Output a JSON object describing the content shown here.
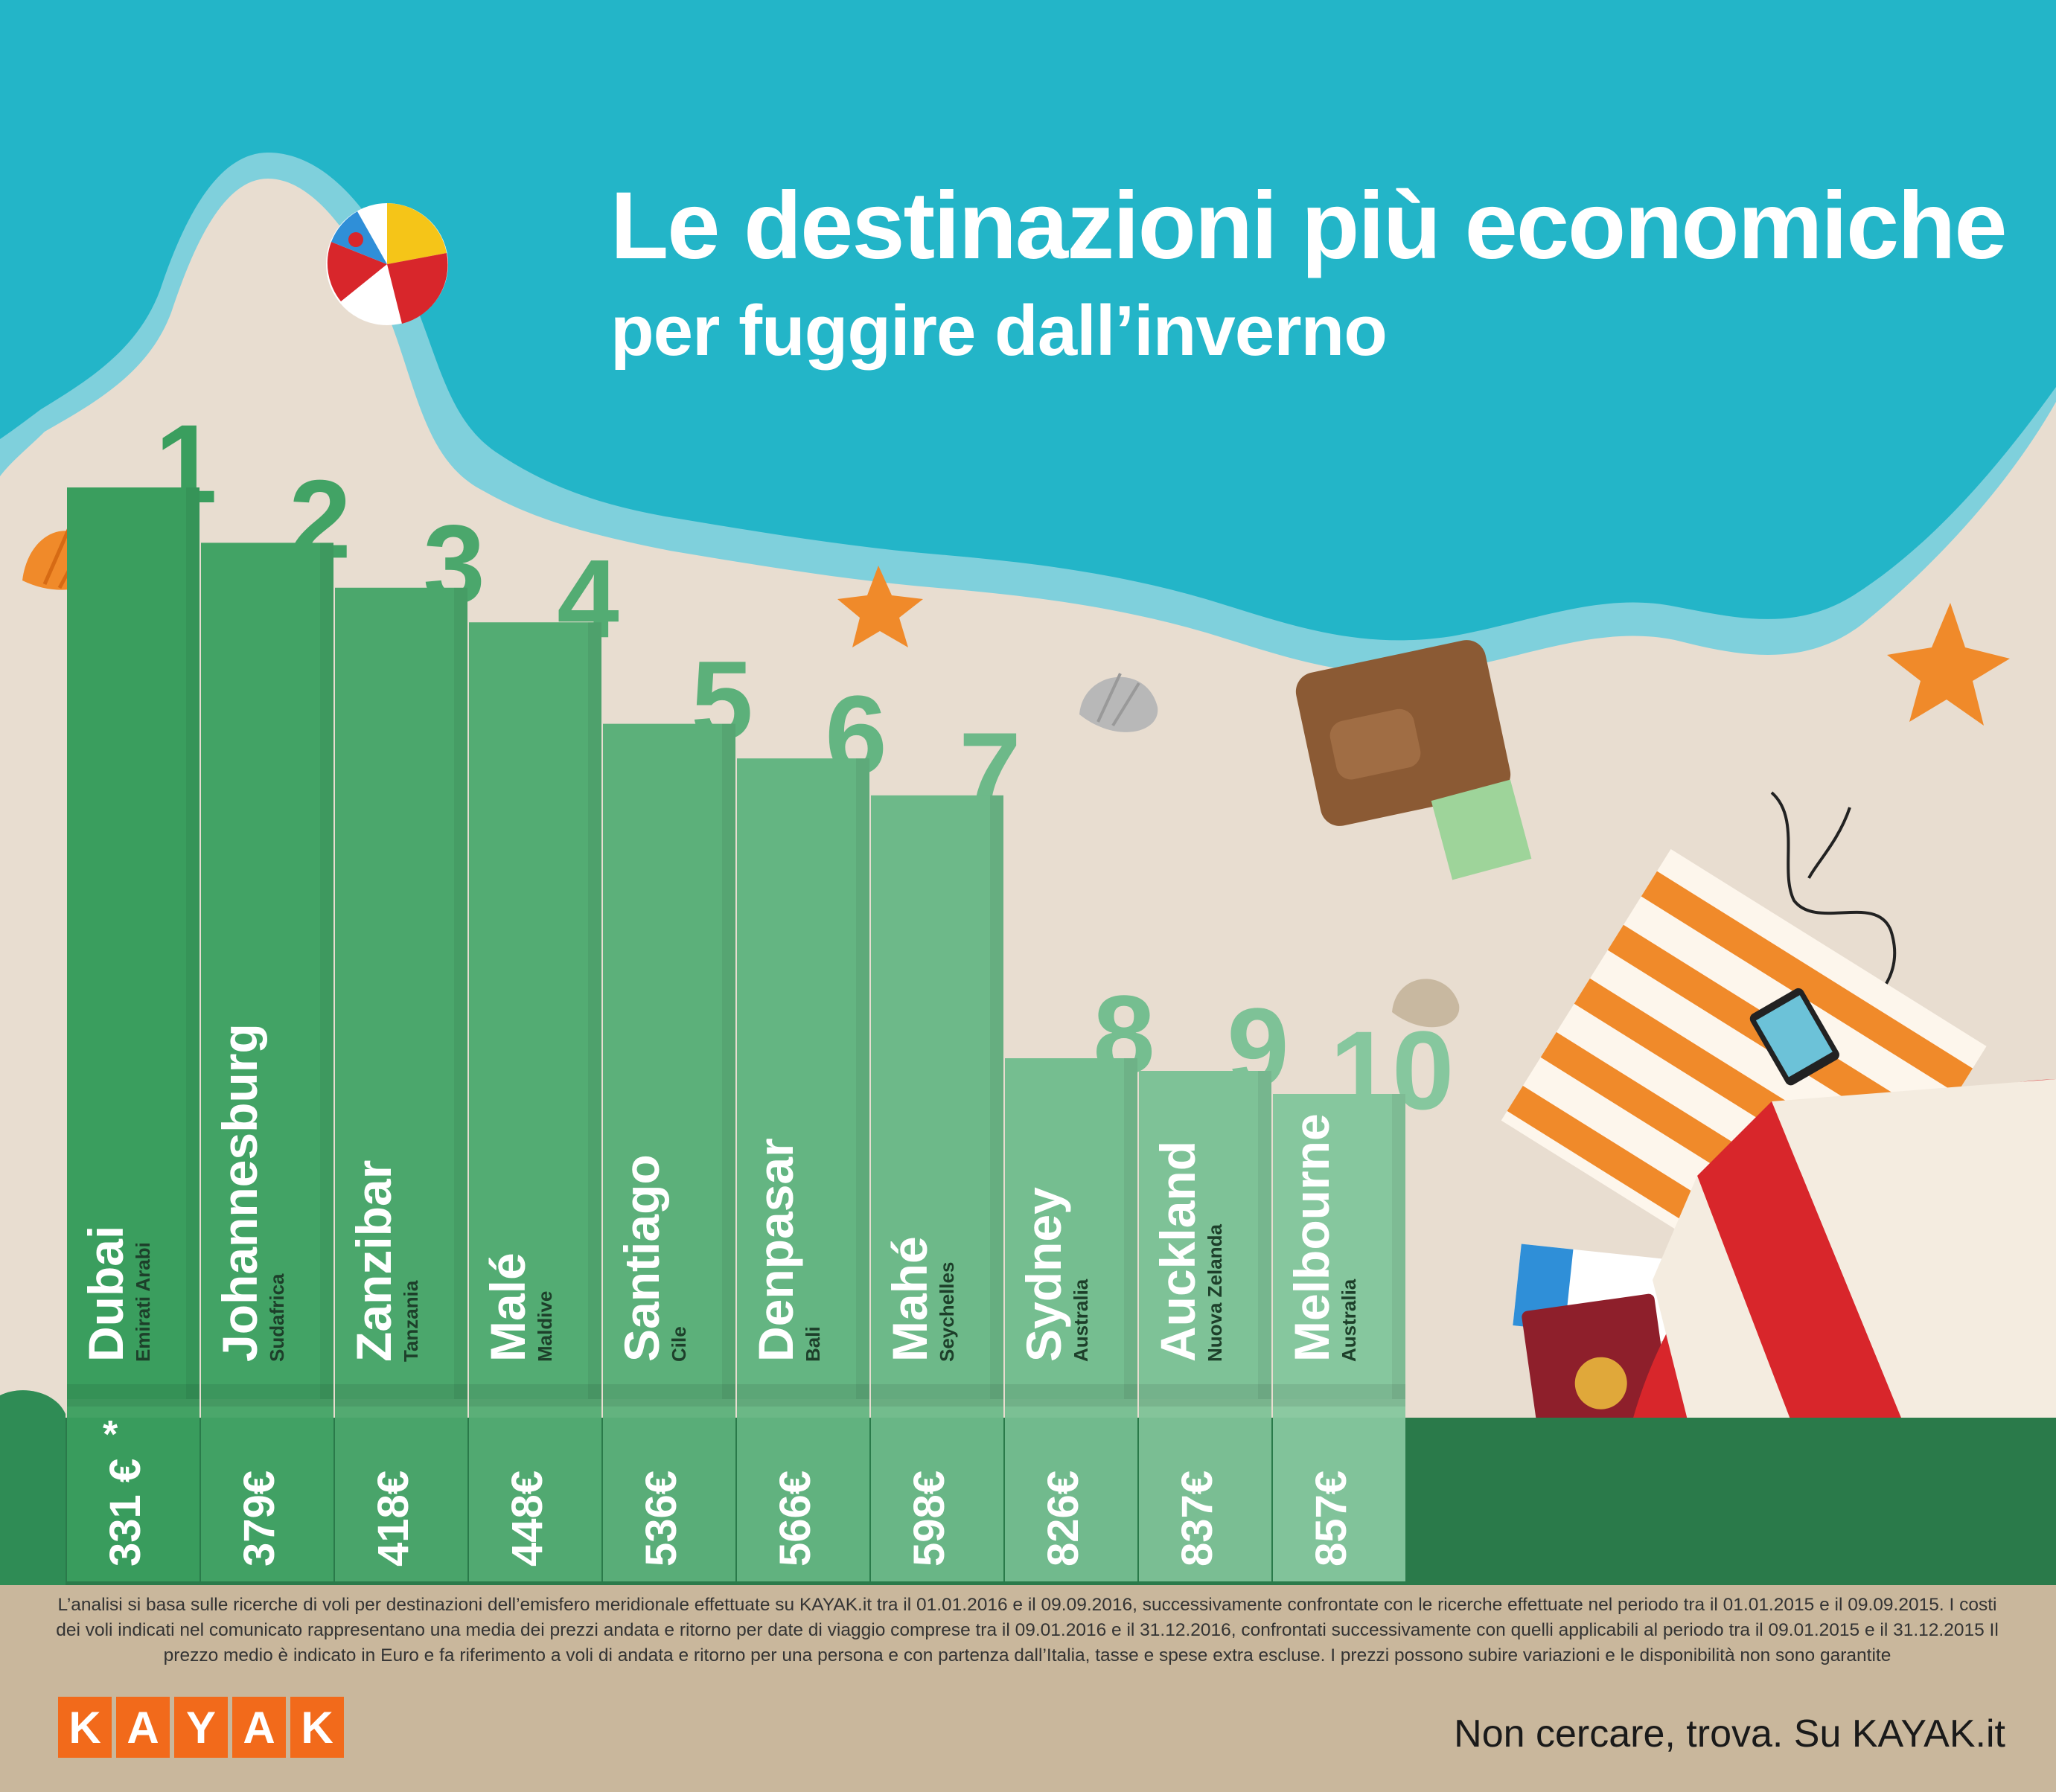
{
  "header": {
    "title": "Le destinazioni più economiche",
    "subtitle": "per fuggire dall’inverno"
  },
  "chart_data": {
    "type": "bar",
    "ranks": [
      "1",
      "2",
      "3",
      "4",
      "5",
      "6",
      "7",
      "8",
      "9",
      "10"
    ],
    "categories": [
      "Dubai",
      "Johannesburg",
      "Zanzibar",
      "Malé",
      "Santiago",
      "Denpasar",
      "Mahé",
      "Sydney",
      "Auckland",
      "Melbourne"
    ],
    "countries": [
      "Emirati Arabi",
      "Sudafrica",
      "Tanzania",
      "Maldive",
      "Cile",
      "Bali",
      "Seychelles",
      "Australia",
      "Nuova Zelanda",
      "Australia"
    ],
    "values": [
      331,
      379,
      418,
      448,
      536,
      566,
      598,
      826,
      837,
      857
    ],
    "value_labels": [
      "331 €",
      "379€",
      "418€",
      "448€",
      "536€",
      "566€",
      "598€",
      "826€",
      "837€",
      "857€"
    ],
    "asterisk": "*",
    "unit": "€"
  },
  "footer": {
    "note": "L’analisi si basa sulle ricerche di voli per destinazioni dell’emisfero meridionale effettuate su KAYAK.it tra il 01.01.2016 e il 09.09.2016, successivamente confrontate con le ricerche effettuate nel periodo tra il 01.01.2015 e il 09.09.2015. I costi dei voli indicati nel comunicato rappresentano una media dei prezzi andata e ritorno per date di viaggio comprese tra il 09.01.2016 e il 31.12.2016, confrontati successivamente con quelli applicabili al periodo tra il 09.01.2015 e il 31.12.2015 Il prezzo medio è indicato in Euro e fa riferimento a voli di andata e ritorno per una persona e con partenza dall’Italia, tasse e spese extra escluse. I prezzi possono subire variazioni e le disponibilità non sono garantite",
    "logo_letters": [
      "K",
      "A",
      "Y",
      "A",
      "K"
    ],
    "tagline": "Non cercare, trova. Su KAYAK.it"
  },
  "colors": {
    "sea": "#23b5c8",
    "foam": "#7fd0dc",
    "sand": "#e8ddd0",
    "bar_first": "#3a9e5e",
    "bar_last": "#86c79e",
    "ground": "#2a7a4a",
    "footer": "#c9b79c",
    "logo": "#f26a1b"
  }
}
